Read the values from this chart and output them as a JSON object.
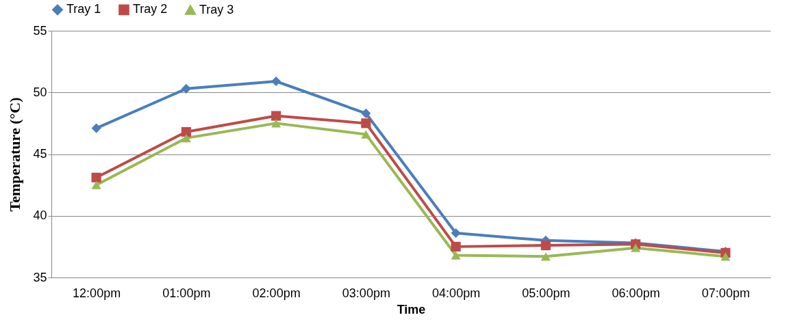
{
  "chart_data": {
    "type": "line",
    "xlabel": "Time",
    "ylabel": "Temperature (°C)",
    "categories": [
      "12:00pm",
      "01:00pm",
      "02:00pm",
      "03:00pm",
      "04:00pm",
      "05:00pm",
      "06:00pm",
      "07:00pm"
    ],
    "series": [
      {
        "name": "Tray 1",
        "color": "#4a7ebb",
        "marker": "diamond",
        "values": [
          47.1,
          50.3,
          50.9,
          48.3,
          38.6,
          38.0,
          37.8,
          37.1
        ]
      },
      {
        "name": "Tray 2",
        "color": "#be4b48",
        "marker": "square",
        "values": [
          43.1,
          46.8,
          48.1,
          47.5,
          37.5,
          37.6,
          37.7,
          37.0
        ]
      },
      {
        "name": "Tray 3",
        "color": "#98b954",
        "marker": "triangle",
        "values": [
          42.5,
          46.3,
          47.5,
          46.6,
          36.8,
          36.7,
          37.4,
          36.7
        ]
      }
    ],
    "ylim": [
      35,
      55
    ],
    "yticks": [
      35,
      40,
      45,
      50,
      55
    ],
    "grid": "y",
    "legend": "top",
    "line_style": "solid"
  }
}
